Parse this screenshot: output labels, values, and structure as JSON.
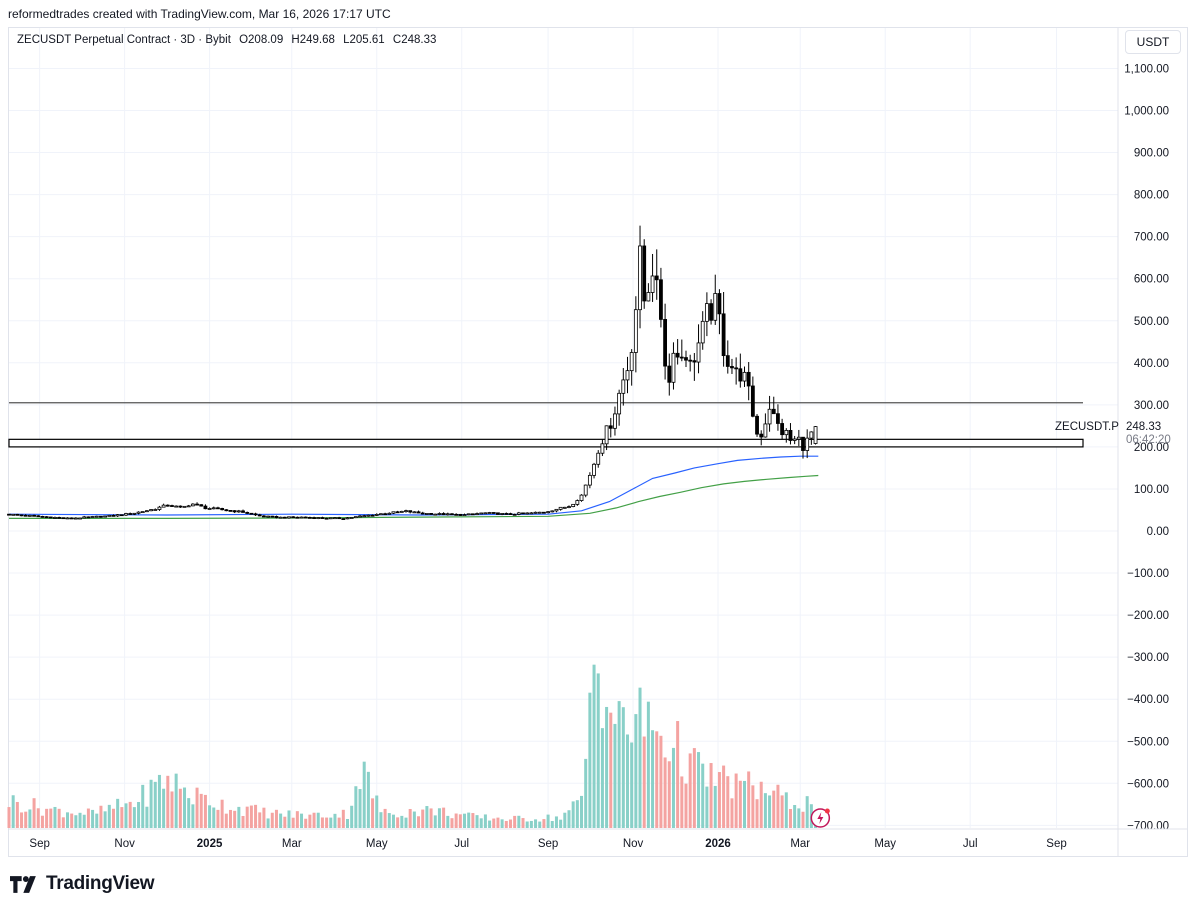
{
  "header": {
    "credit": "reformedtrades created with TradingView.com, Mar 16, 2026 17:17 UTC"
  },
  "legend": {
    "title": "ZECUSDT Perpetual Contract · 3D · Bybit",
    "open": "O208.09",
    "high": "H249.68",
    "low": "L205.61",
    "close": "C248.33"
  },
  "currency_button": "USDT",
  "last_price": {
    "symbol": "ZECUSDT.P",
    "price": "248.33",
    "countdown": "06:42:20"
  },
  "brand": {
    "name": "TradingView",
    "logo": "tradingview-logo-icon"
  },
  "colors": {
    "candle_up": "#ffffff",
    "candle_down": "#000000",
    "candle_border": "#000000",
    "volume_up": "#89d0c8",
    "volume_down": "#f4a3a1",
    "ma_fast": "#2962ff",
    "ma_slow": "#43a047",
    "grid": "#f0f3fa",
    "level_line": "#000000"
  },
  "chart_data": {
    "type": "candlestick",
    "symbol": "ZECUSDT Perpetual Contract",
    "interval": "3D",
    "exchange": "Bybit",
    "y_unit": "USDT",
    "ylim": [
      -720,
      1150
    ],
    "y_ticks": [
      1100,
      1000,
      900,
      800,
      700,
      600,
      500,
      400,
      300,
      200,
      100,
      0,
      -100,
      -200,
      -300,
      -400,
      -500,
      -600,
      -700
    ],
    "y_tick_labels": [
      "1,100.00",
      "1,000.00",
      "900.00",
      "800.00",
      "700.00",
      "600.00",
      "500.00",
      "400.00",
      "300.00",
      "200.00",
      "100.00",
      "0.00",
      "−100.00",
      "−200.00",
      "−300.00",
      "−400.00",
      "−500.00",
      "−600.00",
      "−700.00"
    ],
    "x_start": "2024-08-10",
    "x_end": "2026-09-20",
    "x_ticks": [
      {
        "date": "2024-09-01",
        "label": "Sep",
        "bold": false
      },
      {
        "date": "2024-11-01",
        "label": "Nov",
        "bold": false
      },
      {
        "date": "2025-01-01",
        "label": "2025",
        "bold": true
      },
      {
        "date": "2025-03-01",
        "label": "Mar",
        "bold": false
      },
      {
        "date": "2025-05-01",
        "label": "May",
        "bold": false
      },
      {
        "date": "2025-07-01",
        "label": "Jul",
        "bold": false
      },
      {
        "date": "2025-09-01",
        "label": "Sep",
        "bold": false
      },
      {
        "date": "2025-11-01",
        "label": "Nov",
        "bold": false
      },
      {
        "date": "2026-01-01",
        "label": "2026",
        "bold": true
      },
      {
        "date": "2026-03-01",
        "label": "Mar",
        "bold": false
      },
      {
        "date": "2026-05-01",
        "label": "May",
        "bold": false
      },
      {
        "date": "2026-07-01",
        "label": "Jul",
        "bold": false
      },
      {
        "date": "2026-09-01",
        "label": "Sep",
        "bold": false
      }
    ],
    "horizontal_levels": [
      305
    ],
    "zones": [
      {
        "from": 200,
        "to": 218
      }
    ],
    "price_path": [
      [
        "2024-08-10",
        40
      ],
      [
        "2024-08-25",
        37
      ],
      [
        "2024-09-10",
        33
      ],
      [
        "2024-09-25",
        30
      ],
      [
        "2024-10-10",
        33
      ],
      [
        "2024-10-25",
        36
      ],
      [
        "2024-11-10",
        42
      ],
      [
        "2024-11-25",
        52
      ],
      [
        "2024-12-05",
        62
      ],
      [
        "2024-12-15",
        55
      ],
      [
        "2024-12-22",
        65
      ],
      [
        "2025-01-01",
        55
      ],
      [
        "2025-01-15",
        50
      ],
      [
        "2025-01-28",
        45
      ],
      [
        "2025-02-10",
        35
      ],
      [
        "2025-02-25",
        32
      ],
      [
        "2025-03-10",
        33
      ],
      [
        "2025-03-25",
        31
      ],
      [
        "2025-04-10",
        30
      ],
      [
        "2025-04-25",
        36
      ],
      [
        "2025-05-10",
        42
      ],
      [
        "2025-05-25",
        47
      ],
      [
        "2025-06-05",
        42
      ],
      [
        "2025-06-20",
        40
      ],
      [
        "2025-07-05",
        38
      ],
      [
        "2025-07-20",
        43
      ],
      [
        "2025-08-05",
        40
      ],
      [
        "2025-08-20",
        42
      ],
      [
        "2025-09-01",
        45
      ],
      [
        "2025-09-10",
        52
      ],
      [
        "2025-09-20",
        60
      ],
      [
        "2025-09-28",
        85
      ],
      [
        "2025-10-03",
        125
      ],
      [
        "2025-10-08",
        170
      ],
      [
        "2025-10-12",
        215
      ],
      [
        "2025-10-17",
        240
      ],
      [
        "2025-10-22",
        290
      ],
      [
        "2025-10-27",
        350
      ],
      [
        "2025-11-01",
        400
      ],
      [
        "2025-11-05",
        500
      ],
      [
        "2025-11-09",
        640
      ],
      [
        "2025-11-13",
        520
      ],
      [
        "2025-11-17",
        660
      ],
      [
        "2025-11-21",
        560
      ],
      [
        "2025-11-25",
        500
      ],
      [
        "2025-11-29",
        320
      ],
      [
        "2025-12-03",
        450
      ],
      [
        "2025-12-07",
        400
      ],
      [
        "2025-12-11",
        440
      ],
      [
        "2025-12-15",
        390
      ],
      [
        "2025-12-19",
        430
      ],
      [
        "2025-12-23",
        460
      ],
      [
        "2025-12-27",
        510
      ],
      [
        "2026-01-01",
        540
      ],
      [
        "2026-01-05",
        500
      ],
      [
        "2026-01-09",
        420
      ],
      [
        "2026-01-13",
        400
      ],
      [
        "2026-01-17",
        370
      ],
      [
        "2026-01-21",
        380
      ],
      [
        "2026-01-25",
        340
      ],
      [
        "2026-01-29",
        280
      ],
      [
        "2026-02-02",
        215
      ],
      [
        "2026-02-06",
        250
      ],
      [
        "2026-02-10",
        300
      ],
      [
        "2026-02-14",
        260
      ],
      [
        "2026-02-18",
        240
      ],
      [
        "2026-02-22",
        230
      ],
      [
        "2026-02-26",
        210
      ],
      [
        "2026-03-02",
        220
      ],
      [
        "2026-03-06",
        205
      ],
      [
        "2026-03-10",
        215
      ],
      [
        "2026-03-14",
        248
      ]
    ],
    "series": [
      {
        "name": "MA fast",
        "color": "#2962ff",
        "points": [
          [
            "2024-08-10",
            40
          ],
          [
            "2024-12-01",
            38
          ],
          [
            "2025-03-01",
            40
          ],
          [
            "2025-06-01",
            38
          ],
          [
            "2025-09-01",
            40
          ],
          [
            "2025-09-25",
            48
          ],
          [
            "2025-10-15",
            70
          ],
          [
            "2025-11-01",
            100
          ],
          [
            "2025-11-15",
            125
          ],
          [
            "2025-12-01",
            138
          ],
          [
            "2025-12-15",
            150
          ],
          [
            "2026-01-01",
            160
          ],
          [
            "2026-01-15",
            168
          ],
          [
            "2026-02-01",
            173
          ],
          [
            "2026-02-15",
            176
          ],
          [
            "2026-03-01",
            178
          ],
          [
            "2026-03-14",
            178
          ]
        ]
      },
      {
        "name": "MA slow",
        "color": "#43a047",
        "points": [
          [
            "2024-08-10",
            30
          ],
          [
            "2024-12-01",
            30
          ],
          [
            "2025-03-01",
            31
          ],
          [
            "2025-06-01",
            33
          ],
          [
            "2025-09-01",
            35
          ],
          [
            "2025-10-01",
            42
          ],
          [
            "2025-10-20",
            55
          ],
          [
            "2025-11-05",
            70
          ],
          [
            "2025-11-20",
            82
          ],
          [
            "2025-12-05",
            92
          ],
          [
            "2025-12-20",
            103
          ],
          [
            "2026-01-05",
            112
          ],
          [
            "2026-01-20",
            118
          ],
          [
            "2026-02-05",
            123
          ],
          [
            "2026-02-20",
            127
          ],
          [
            "2026-03-05",
            130
          ],
          [
            "2026-03-14",
            132
          ]
        ]
      }
    ],
    "volume_profile": [
      [
        "2024-08-10",
        0.15
      ],
      [
        "2024-09-10",
        0.1
      ],
      [
        "2024-10-10",
        0.08
      ],
      [
        "2024-11-10",
        0.15
      ],
      [
        "2024-12-01",
        0.28
      ],
      [
        "2024-12-20",
        0.18
      ],
      [
        "2025-01-15",
        0.12
      ],
      [
        "2025-02-15",
        0.08
      ],
      [
        "2025-03-15",
        0.07
      ],
      [
        "2025-04-10",
        0.08
      ],
      [
        "2025-04-20",
        0.33
      ],
      [
        "2025-05-05",
        0.08
      ],
      [
        "2025-06-10",
        0.1
      ],
      [
        "2025-07-10",
        0.06
      ],
      [
        "2025-08-10",
        0.05
      ],
      [
        "2025-09-10",
        0.06
      ],
      [
        "2025-09-25",
        0.15
      ],
      [
        "2025-10-05",
        1.0
      ],
      [
        "2025-10-20",
        0.55
      ],
      [
        "2025-11-10",
        0.6
      ],
      [
        "2025-12-01",
        0.45
      ],
      [
        "2025-12-20",
        0.3
      ],
      [
        "2026-01-10",
        0.25
      ],
      [
        "2026-02-01",
        0.22
      ],
      [
        "2026-02-20",
        0.15
      ],
      [
        "2026-03-14",
        0.13
      ]
    ]
  }
}
